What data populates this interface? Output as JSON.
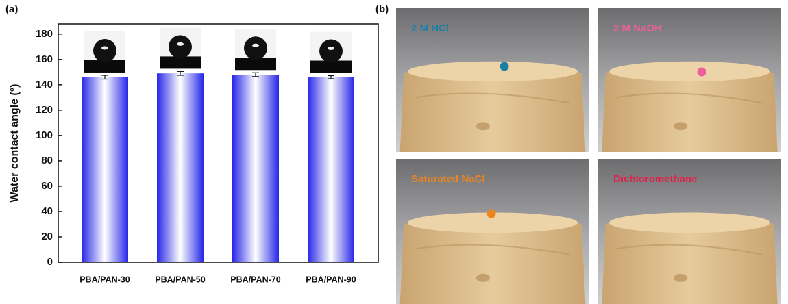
{
  "chart_data": {
    "type": "bar",
    "panel_label": "(a)",
    "y_label": "Water contact angle (°)",
    "categories": [
      "PBA/PAN-30",
      "PBA/PAN-50",
      "PBA/PAN-70",
      "PBA/PAN-90"
    ],
    "values": [
      146,
      149,
      148,
      146
    ],
    "errors": [
      1.5,
      1.5,
      1.5,
      1.2
    ],
    "color": "#2a2ae6",
    "ylim": [
      0,
      188
    ],
    "yticks": [
      0,
      20,
      40,
      60,
      80,
      100,
      120,
      140,
      160,
      180
    ]
  },
  "photos_panel": {
    "panel_label": "(b)",
    "photos": [
      {
        "label": "2 M HCl",
        "color": "#1c7fa6"
      },
      {
        "label": "2 M NaOH",
        "color": "#ec5f9c"
      },
      {
        "label": "Saturated NaCl",
        "color": "#ec8520"
      },
      {
        "label": "Dichloromethane",
        "color": "#e0204c"
      }
    ]
  }
}
